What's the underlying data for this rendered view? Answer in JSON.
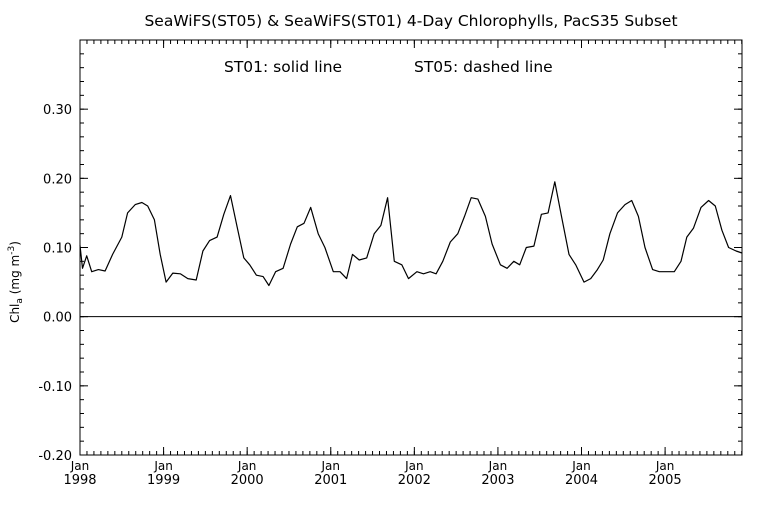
{
  "chart_data": {
    "type": "line",
    "title": "SeaWiFS(ST05) & SeaWiFS(ST01) 4-Day Chlorophylls, PacS35 Subset",
    "annotation": {
      "solid_label": "ST01: solid line",
      "dashed_label": "ST05: dashed line"
    },
    "ylabel": {
      "main": "Chl",
      "sub": "a",
      "units": "(mg m",
      "sup": "-3",
      "close": ")"
    },
    "ylim": [
      -0.2,
      0.4
    ],
    "yticks": [
      "0.30",
      "0.20",
      "0.10",
      "0.00",
      "-0.10",
      "-0.20"
    ],
    "ytick_values": [
      0.3,
      0.2,
      0.1,
      0.0,
      -0.1,
      -0.2
    ],
    "xlim": [
      1998.0,
      2005.92
    ],
    "xticks": [
      {
        "month": "Jan",
        "year": "1998",
        "x": 1998
      },
      {
        "month": "Jan",
        "year": "1999",
        "x": 1999
      },
      {
        "month": "Jan",
        "year": "2000",
        "x": 2000
      },
      {
        "month": "Jan",
        "year": "2001",
        "x": 2001
      },
      {
        "month": "Jan",
        "year": "2002",
        "x": 2002
      },
      {
        "month": "Jan",
        "year": "2003",
        "x": 2003
      },
      {
        "month": "Jan",
        "year": "2004",
        "x": 2004
      },
      {
        "month": "Jan",
        "year": "2005",
        "x": 2005
      }
    ],
    "zero_line": 0.0,
    "series": [
      {
        "style": "solid",
        "x": [
          1998.0,
          1998.03,
          1998.08,
          1998.14,
          1998.22,
          1998.3,
          1998.39,
          1998.5,
          1998.57,
          1998.66,
          1998.74,
          1998.81,
          1998.89,
          1998.96,
          1999.03,
          1999.11,
          1999.2,
          1999.29,
          1999.39,
          1999.47,
          1999.55,
          1999.64,
          1999.72,
          1999.8,
          1999.88,
          1999.96,
          2000.03,
          2000.11,
          2000.19,
          2000.26,
          2000.34,
          2000.43,
          2000.52,
          2000.6,
          2000.68,
          2000.76,
          2000.85,
          2000.93,
          2001.03,
          2001.11,
          2001.19,
          2001.26,
          2001.34,
          2001.43,
          2001.52,
          2001.6,
          2001.68,
          2001.76,
          2001.85,
          2001.93,
          2002.03,
          2002.11,
          2002.19,
          2002.26,
          2002.34,
          2002.43,
          2002.52,
          2002.6,
          2002.68,
          2002.76,
          2002.85,
          2002.93,
          2003.03,
          2003.11,
          2003.19,
          2003.26,
          2003.34,
          2003.43,
          2003.52,
          2003.6,
          2003.68,
          2003.76,
          2003.85,
          2003.93,
          2004.03,
          2004.11,
          2004.19,
          2004.26,
          2004.34,
          2004.43,
          2004.52,
          2004.6,
          2004.68,
          2004.76,
          2004.85,
          2004.93,
          2005.03,
          2005.11,
          2005.19,
          2005.26,
          2005.34,
          2005.43,
          2005.52,
          2005.6,
          2005.68,
          2005.76,
          2005.85,
          2005.92
        ],
        "y": [
          0.103,
          0.07,
          0.088,
          0.065,
          0.068,
          0.066,
          0.09,
          0.115,
          0.15,
          0.162,
          0.165,
          0.16,
          0.14,
          0.09,
          0.05,
          0.063,
          0.062,
          0.055,
          0.053,
          0.095,
          0.11,
          0.115,
          0.148,
          0.175,
          0.13,
          0.085,
          0.075,
          0.06,
          0.058,
          0.045,
          0.065,
          0.07,
          0.105,
          0.13,
          0.135,
          0.158,
          0.12,
          0.1,
          0.065,
          0.065,
          0.055,
          0.09,
          0.082,
          0.085,
          0.12,
          0.132,
          0.172,
          0.08,
          0.075,
          0.055,
          0.065,
          0.062,
          0.065,
          0.062,
          0.08,
          0.108,
          0.12,
          0.145,
          0.172,
          0.17,
          0.145,
          0.105,
          0.075,
          0.07,
          0.08,
          0.075,
          0.1,
          0.102,
          0.148,
          0.15,
          0.195,
          0.145,
          0.09,
          0.075,
          0.05,
          0.055,
          0.068,
          0.082,
          0.12,
          0.15,
          0.162,
          0.168,
          0.145,
          0.1,
          0.068,
          0.065,
          0.065,
          0.065,
          0.08,
          0.115,
          0.128,
          0.158,
          0.168,
          0.16,
          0.125,
          0.1,
          0.095,
          0.092
        ]
      }
    ]
  }
}
